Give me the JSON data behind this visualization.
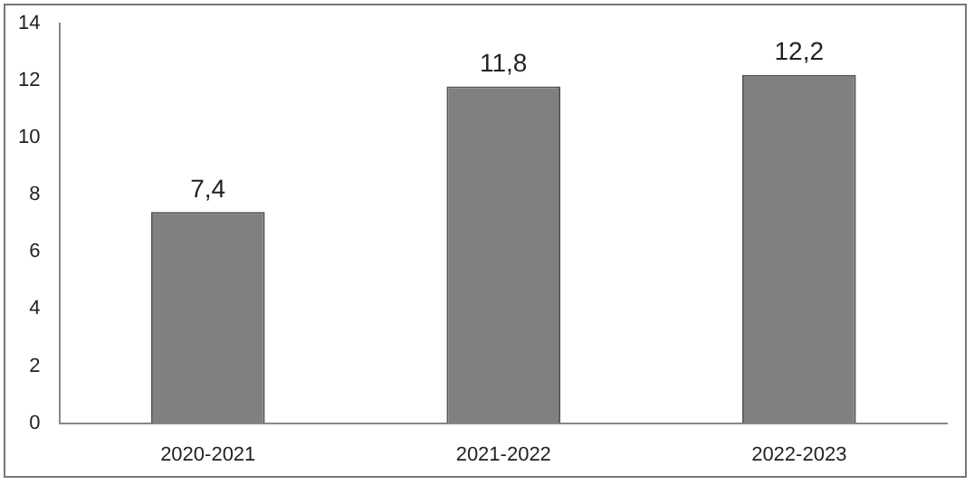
{
  "chart_data": {
    "type": "bar",
    "categories": [
      "2020-2021",
      "2021-2022",
      "2022-2023"
    ],
    "values": [
      7.4,
      11.8,
      12.2
    ],
    "color": "#808080",
    "value_labels": [
      "7,4",
      "11,8",
      "12,2"
    ],
    "ylim": [
      0,
      14
    ],
    "yticks": [
      0,
      2,
      4,
      6,
      8,
      10,
      12,
      14
    ],
    "grid": false
  }
}
